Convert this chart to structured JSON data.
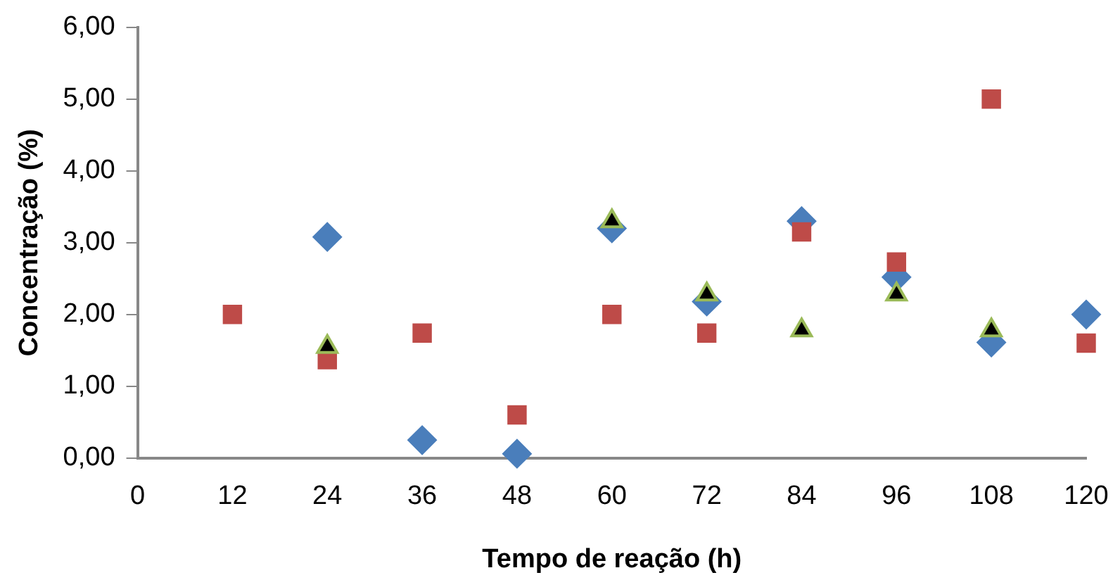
{
  "chart_data": {
    "type": "scatter",
    "xlabel": "Tempo de reação (h)",
    "ylabel": "Concentração (%)",
    "xlim": [
      0,
      120
    ],
    "xticks": [
      0,
      12,
      24,
      36,
      48,
      60,
      72,
      84,
      96,
      108,
      120
    ],
    "ylim": [
      0,
      6
    ],
    "yticks": [
      {
        "value": 0,
        "label": "0,00"
      },
      {
        "value": 1,
        "label": "1,00"
      },
      {
        "value": 2,
        "label": "2,00"
      },
      {
        "value": 3,
        "label": "3,00"
      },
      {
        "value": 4,
        "label": "4,00"
      },
      {
        "value": 5,
        "label": "5,00"
      },
      {
        "value": 6,
        "label": "6,00"
      }
    ],
    "grid": false,
    "legend": false,
    "series": [
      {
        "color": "#4a7ebb",
        "marker": "diamond",
        "x": [
          24,
          36,
          48,
          60,
          72,
          84,
          96,
          108,
          120
        ],
        "values": [
          3.08,
          0.25,
          0.06,
          3.2,
          2.18,
          3.3,
          2.52,
          1.61,
          2.0
        ]
      },
      {
        "color": "#be4b48",
        "marker": "square",
        "x": [
          12,
          24,
          36,
          48,
          60,
          72,
          84,
          96,
          108,
          120
        ],
        "values": [
          2.0,
          1.37,
          1.74,
          0.6,
          2.0,
          1.74,
          3.15,
          2.73,
          5.0,
          1.6
        ]
      },
      {
        "color": "#000000",
        "marker": "triangle",
        "x": [
          24,
          60,
          72,
          84,
          96,
          108
        ],
        "values": [
          1.55,
          3.3,
          2.28,
          1.78,
          2.28,
          1.78
        ]
      }
    ]
  }
}
